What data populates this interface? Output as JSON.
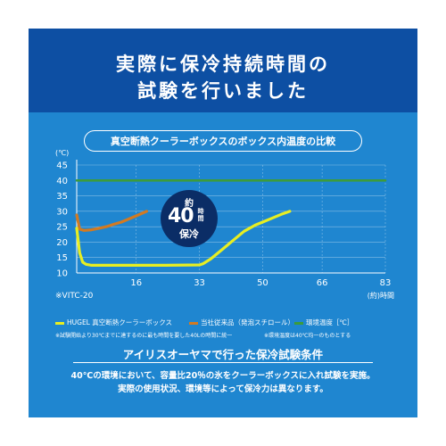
{
  "header": {
    "title_line1": "実際に保冷持続時間の",
    "title_line2": "試験を行いました"
  },
  "caption": "真空断熱クーラーボックスのボックス内温度の比較",
  "badge": {
    "prefix": "約",
    "number": "40",
    "unit": "時間",
    "suffix": "保冷"
  },
  "model_label": "※VITC-20",
  "notes": {
    "left": "※試験開始より30℃までに達するのに最も時間を要した40Lの時間に統一",
    "right": "※環境温度は40℃均一のものとする"
  },
  "conditions": {
    "title": "アイリスオーヤマで行った保冷試験条件",
    "line1": "40℃の環境において、容量比20％の氷をクーラーボックスに入れ試験を実施。",
    "line2": "実際の使用状況、環境等によって保冷力は異なります。"
  },
  "colors": {
    "frame": "#ffffff",
    "panel": "#1f86d0",
    "header": "#0d4fa3",
    "badge": "#0b2d66",
    "hugel": "#e7ee22",
    "conventional": "#d27a22",
    "ambient": "#3c9b3c"
  },
  "chart_data": {
    "type": "line",
    "ylabel": "(℃)",
    "xlabel": "(約)時間",
    "x_ticks": [
      0,
      16,
      33,
      50,
      66,
      83
    ],
    "x_tick_labels": [
      "",
      "16",
      "33",
      "50",
      "66",
      "83"
    ],
    "y_ticks": [
      10,
      15,
      20,
      25,
      30,
      35,
      40,
      45
    ],
    "y_tick_labels": [
      "10",
      "15",
      "20",
      "25",
      "30",
      "35",
      "40",
      "45"
    ],
    "xlim": [
      0,
      83
    ],
    "ylim": [
      10,
      45
    ],
    "grid": true,
    "legend_position": "bottom",
    "series": [
      {
        "name": "HUGEL 真空断熱クーラーボックス",
        "color": "#e7ee22",
        "x": [
          0,
          0.8,
          1.6,
          2.5,
          4,
          8,
          16,
          24,
          33,
          34,
          36,
          39,
          42,
          45,
          48,
          50,
          53,
          55,
          57.3
        ],
        "y": [
          24.5,
          16.5,
          13.5,
          12.8,
          12.5,
          12.5,
          12.5,
          12.5,
          12.6,
          13,
          14.5,
          17.5,
          20.5,
          23.5,
          25.5,
          26.5,
          28,
          29,
          30
        ]
      },
      {
        "name": "当社従来品（発泡スチロール）",
        "color": "#d27a22",
        "x": [
          0,
          0.8,
          2,
          4,
          6,
          8,
          10,
          12,
          14,
          16,
          18.8
        ],
        "y": [
          28.8,
          24.2,
          23.8,
          24,
          24.5,
          25,
          25.8,
          26.5,
          27.5,
          28.5,
          30
        ]
      },
      {
        "name": "環境温度［℃］",
        "color": "#3c9b3c",
        "x": [
          0,
          83
        ],
        "y": [
          40,
          40
        ]
      }
    ]
  }
}
